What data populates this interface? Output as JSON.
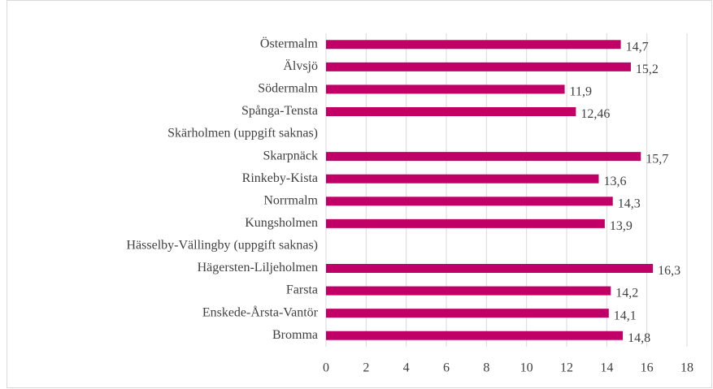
{
  "chart_data": {
    "type": "bar",
    "orientation": "horizontal",
    "categories": [
      "Östermalm",
      "Älvsjö",
      "Södermalm",
      "Spånga-Tensta",
      "Skärholmen (uppgift saknas)",
      "Skarpnäck",
      "Rinkeby-Kista",
      "Norrmalm",
      "Kungsholmen",
      "Hässelby-Vällingby (uppgift saknas)",
      "Hägersten-Liljeholmen",
      "Farsta",
      "Enskede-Årsta-Vantör",
      "Bromma"
    ],
    "values": [
      14.7,
      15.2,
      11.9,
      12.46,
      null,
      15.7,
      13.6,
      14.3,
      13.9,
      null,
      16.3,
      14.2,
      14.1,
      14.8
    ],
    "value_labels": [
      "14,7",
      "15,2",
      "11,9",
      "12,46",
      null,
      "15,7",
      "13,6",
      "14,3",
      "13,9",
      null,
      "16,3",
      "14,2",
      "14,1",
      "14,8"
    ],
    "color": "#c00066",
    "xlim": [
      0,
      18
    ],
    "xticks": [
      0,
      2,
      4,
      6,
      8,
      10,
      12,
      14,
      16,
      18
    ],
    "grid": true
  }
}
